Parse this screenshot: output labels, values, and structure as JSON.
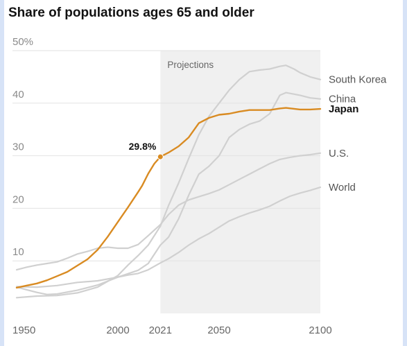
{
  "chart_data": {
    "type": "line",
    "title": "Share of populations ages 65 and older",
    "xlabel": "",
    "ylabel": "",
    "xlim": [
      1950,
      2100
    ],
    "ylim": [
      0,
      50
    ],
    "y_ticks": [
      {
        "value": 10,
        "label": "10"
      },
      {
        "value": 20,
        "label": "20"
      },
      {
        "value": 30,
        "label": "30"
      },
      {
        "value": 40,
        "label": "40"
      },
      {
        "value": 50,
        "label": "50%"
      }
    ],
    "x_ticks": [
      {
        "value": 1950,
        "label": "1950"
      },
      {
        "value": 2000,
        "label": "2000"
      },
      {
        "value": 2021,
        "label": "2021"
      },
      {
        "value": 2050,
        "label": "2050"
      },
      {
        "value": 2100,
        "label": "2100"
      }
    ],
    "projection_region": {
      "from": 2021,
      "to": 2100,
      "label": "Projections"
    },
    "annotation": {
      "series": "Japan",
      "x": 2021,
      "y": 29.8,
      "label": "29.8%"
    },
    "highlight_color": "#d98b22",
    "base_color": "#d0d0d0",
    "grid": true,
    "series": [
      {
        "name": "South Korea",
        "highlight": false,
        "points": [
          [
            1950,
            3.0
          ],
          [
            1960,
            3.3
          ],
          [
            1970,
            3.4
          ],
          [
            1980,
            3.9
          ],
          [
            1990,
            5.0
          ],
          [
            2000,
            7.2
          ],
          [
            2005,
            9.2
          ],
          [
            2010,
            11.0
          ],
          [
            2015,
            13.0
          ],
          [
            2021,
            16.6
          ],
          [
            2025,
            20.5
          ],
          [
            2030,
            24.8
          ],
          [
            2035,
            29.5
          ],
          [
            2040,
            34.0
          ],
          [
            2045,
            37.5
          ],
          [
            2050,
            40.0
          ],
          [
            2055,
            42.5
          ],
          [
            2060,
            44.5
          ],
          [
            2065,
            46.0
          ],
          [
            2070,
            46.3
          ],
          [
            2075,
            46.5
          ],
          [
            2080,
            47.0
          ],
          [
            2083,
            47.2
          ],
          [
            2087,
            46.5
          ],
          [
            2090,
            45.8
          ],
          [
            2095,
            45.0
          ],
          [
            2100,
            44.5
          ]
        ]
      },
      {
        "name": "China",
        "highlight": false,
        "points": [
          [
            1950,
            5.0
          ],
          [
            1955,
            4.5
          ],
          [
            1960,
            4.0
          ],
          [
            1965,
            3.6
          ],
          [
            1970,
            3.7
          ],
          [
            1980,
            4.4
          ],
          [
            1990,
            5.4
          ],
          [
            2000,
            6.9
          ],
          [
            2010,
            8.2
          ],
          [
            2015,
            9.5
          ],
          [
            2021,
            13.0
          ],
          [
            2025,
            14.5
          ],
          [
            2030,
            18.0
          ],
          [
            2035,
            22.5
          ],
          [
            2040,
            26.5
          ],
          [
            2045,
            28.0
          ],
          [
            2050,
            30.0
          ],
          [
            2055,
            33.5
          ],
          [
            2060,
            35.0
          ],
          [
            2065,
            36.0
          ],
          [
            2070,
            36.6
          ],
          [
            2075,
            38.0
          ],
          [
            2080,
            41.5
          ],
          [
            2083,
            42.0
          ],
          [
            2090,
            41.5
          ],
          [
            2095,
            41.0
          ],
          [
            2100,
            40.8
          ]
        ]
      },
      {
        "name": "Japan",
        "highlight": true,
        "points": [
          [
            1950,
            4.9
          ],
          [
            1955,
            5.3
          ],
          [
            1960,
            5.7
          ],
          [
            1965,
            6.3
          ],
          [
            1970,
            7.1
          ],
          [
            1975,
            7.9
          ],
          [
            1980,
            9.1
          ],
          [
            1985,
            10.3
          ],
          [
            1990,
            12.1
          ],
          [
            1995,
            14.6
          ],
          [
            2000,
            17.4
          ],
          [
            2005,
            20.2
          ],
          [
            2010,
            23.1
          ],
          [
            2012,
            24.3
          ],
          [
            2015,
            26.6
          ],
          [
            2018,
            28.5
          ],
          [
            2021,
            29.8
          ],
          [
            2025,
            30.6
          ],
          [
            2030,
            31.8
          ],
          [
            2035,
            33.5
          ],
          [
            2040,
            36.2
          ],
          [
            2045,
            37.2
          ],
          [
            2050,
            37.8
          ],
          [
            2055,
            38.0
          ],
          [
            2060,
            38.4
          ],
          [
            2065,
            38.7
          ],
          [
            2070,
            38.7
          ],
          [
            2075,
            38.7
          ],
          [
            2080,
            39.0
          ],
          [
            2083,
            39.1
          ],
          [
            2090,
            38.8
          ],
          [
            2095,
            38.8
          ],
          [
            2100,
            38.9
          ]
        ]
      },
      {
        "name": "U.S.",
        "highlight": false,
        "points": [
          [
            1950,
            8.3
          ],
          [
            1955,
            8.8
          ],
          [
            1960,
            9.2
          ],
          [
            1965,
            9.5
          ],
          [
            1970,
            9.8
          ],
          [
            1975,
            10.5
          ],
          [
            1980,
            11.3
          ],
          [
            1985,
            11.8
          ],
          [
            1990,
            12.4
          ],
          [
            1995,
            12.6
          ],
          [
            2000,
            12.4
          ],
          [
            2005,
            12.4
          ],
          [
            2010,
            13.1
          ],
          [
            2015,
            14.8
          ],
          [
            2021,
            16.9
          ],
          [
            2025,
            18.8
          ],
          [
            2030,
            20.6
          ],
          [
            2035,
            21.6
          ],
          [
            2040,
            22.2
          ],
          [
            2045,
            22.8
          ],
          [
            2050,
            23.5
          ],
          [
            2055,
            24.5
          ],
          [
            2060,
            25.5
          ],
          [
            2065,
            26.5
          ],
          [
            2070,
            27.5
          ],
          [
            2075,
            28.5
          ],
          [
            2080,
            29.3
          ],
          [
            2085,
            29.7
          ],
          [
            2090,
            30.0
          ],
          [
            2095,
            30.2
          ],
          [
            2100,
            30.5
          ]
        ]
      },
      {
        "name": "World",
        "highlight": false,
        "points": [
          [
            1950,
            5.1
          ],
          [
            1960,
            5.0
          ],
          [
            1970,
            5.3
          ],
          [
            1980,
            5.9
          ],
          [
            1990,
            6.2
          ],
          [
            2000,
            6.9
          ],
          [
            2005,
            7.3
          ],
          [
            2010,
            7.6
          ],
          [
            2015,
            8.3
          ],
          [
            2021,
            9.6
          ],
          [
            2025,
            10.4
          ],
          [
            2030,
            11.6
          ],
          [
            2035,
            13.0
          ],
          [
            2040,
            14.2
          ],
          [
            2045,
            15.2
          ],
          [
            2050,
            16.4
          ],
          [
            2055,
            17.6
          ],
          [
            2060,
            18.4
          ],
          [
            2065,
            19.1
          ],
          [
            2070,
            19.7
          ],
          [
            2075,
            20.4
          ],
          [
            2080,
            21.4
          ],
          [
            2085,
            22.3
          ],
          [
            2090,
            22.9
          ],
          [
            2095,
            23.4
          ],
          [
            2100,
            24.0
          ]
        ]
      }
    ]
  }
}
